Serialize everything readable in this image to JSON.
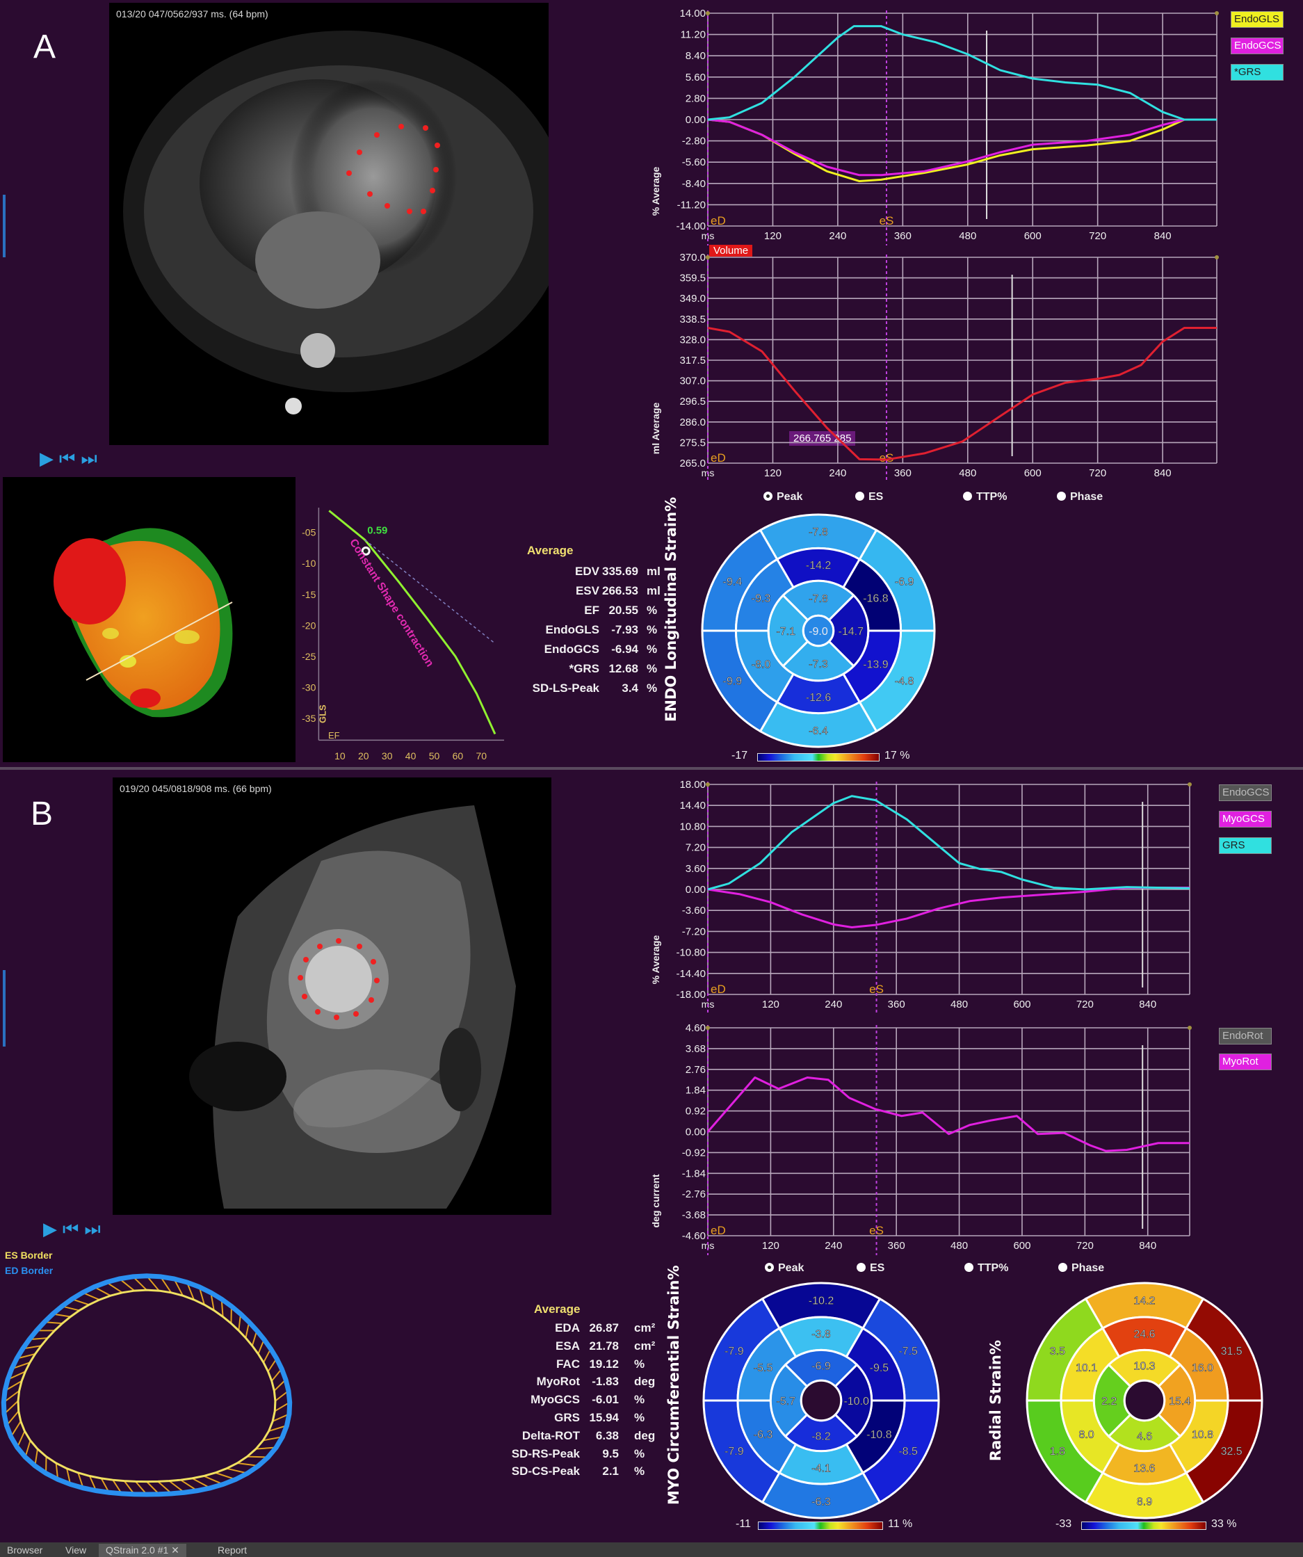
{
  "colors": {
    "background": "#2b0b30",
    "endo_gls": "#f0f020",
    "endo_gcs": "#e020e0",
    "grs": "#30e0e0",
    "volume": "#e02030",
    "myo_gcs": "#e020e0",
    "myo_rot": "#e020e0",
    "play_buttons": "#2aa0e0",
    "es_border": "#f0e060",
    "ed_border": "#2a90f0"
  },
  "panel_a": {
    "letter": "A",
    "frame_info": "013/20  047/0562/937 ms.  (64 bpm)",
    "playback": {
      "play_icon": "play-icon",
      "first_icon": "skip-to-start-icon",
      "last_icon": "skip-to-end-icon"
    },
    "average_title": "Average",
    "average_rows": [
      {
        "label": "EDV",
        "value": "335.69",
        "unit": "ml"
      },
      {
        "label": "ESV",
        "value": "266.53",
        "unit": "ml"
      },
      {
        "label": "EF",
        "value": "20.55",
        "unit": "%"
      },
      {
        "label": "EndoGLS",
        "value": "-7.93",
        "unit": "%"
      },
      {
        "label": "EndoGCS",
        "value": "-6.94",
        "unit": "%"
      },
      {
        "label": "*GRS",
        "value": "12.68",
        "unit": "%"
      },
      {
        "label": "SD-LS-Peak",
        "value": "3.4",
        "unit": "%"
      }
    ],
    "legend_strain": [
      "EndoGLS",
      "EndoGCS",
      "*GRS"
    ],
    "legend_volume": "Volume",
    "radio_options": [
      {
        "label": "Peak",
        "selected": true
      },
      {
        "label": "ES",
        "selected": false
      },
      {
        "label": "TTP%",
        "selected": false
      },
      {
        "label": "Phase",
        "selected": false
      }
    ],
    "bullseye_title": "ENDO Longitudinal Strain%",
    "colorbar": {
      "min": "-17",
      "max": "17 %"
    }
  },
  "panel_b": {
    "letter": "B",
    "frame_info": "019/20  045/0818/908 ms.  (66 bpm)",
    "border_legend": {
      "es": "ES Border",
      "ed": "ED Border"
    },
    "average_title": "Average",
    "average_rows": [
      {
        "label": "EDA",
        "value": "26.87",
        "unit": "cm²"
      },
      {
        "label": "ESA",
        "value": "21.78",
        "unit": "cm²"
      },
      {
        "label": "FAC",
        "value": "19.12",
        "unit": "%"
      },
      {
        "label": "MyoRot",
        "value": "-1.83",
        "unit": "deg"
      },
      {
        "label": "MyoGCS",
        "value": "-6.01",
        "unit": "%"
      },
      {
        "label": "GRS",
        "value": "15.94",
        "unit": "%"
      },
      {
        "label": "Delta-ROT",
        "value": "6.38",
        "unit": "deg"
      },
      {
        "label": "SD-RS-Peak",
        "value": "9.5",
        "unit": "%"
      },
      {
        "label": "SD-CS-Peak",
        "value": "2.1",
        "unit": "%"
      }
    ],
    "legend_strain": [
      "EndoGCS",
      "MyoGCS",
      "GRS"
    ],
    "legend_rotation": [
      "EndoRot",
      "MyoRot"
    ],
    "radio_options": [
      {
        "label": "Peak",
        "selected": true
      },
      {
        "label": "ES",
        "selected": false
      },
      {
        "label": "TTP%",
        "selected": false
      },
      {
        "label": "Phase",
        "selected": false
      }
    ],
    "bullseye_myo_title": "MYO Circumferential Strain%",
    "bullseye_radial_title": "Radial Strain%",
    "colorbar_myo": {
      "min": "-11",
      "max": "11 %"
    },
    "colorbar_radial": {
      "min": "-33",
      "max": "33 %"
    }
  },
  "tabs": [
    {
      "label": "Browser",
      "active": false
    },
    {
      "label": "View",
      "active": false
    },
    {
      "label": "QStrain 2.0 #1  ✕",
      "active": true
    },
    {
      "label": "Report",
      "active": false
    }
  ],
  "chart_data": [
    {
      "type": "line",
      "id": "a_strain",
      "xlabel": "ms",
      "ylabel": "% Average",
      "xlim": [
        0,
        940
      ],
      "ylim": [
        -14,
        14
      ],
      "xticks": [
        "120",
        "240",
        "360",
        "480",
        "600",
        "720",
        "840"
      ],
      "yticks": [
        "14.00",
        "11.20",
        "8.40",
        "5.60",
        "2.80",
        "0.00",
        "-2.80",
        "-5.60",
        "-8.40",
        "-11.20",
        "-14.00"
      ],
      "grid": true,
      "markers": [
        {
          "label": "eD",
          "x": 0
        },
        {
          "label": "eS",
          "x": 330
        }
      ],
      "cursor_x": 515,
      "series": [
        {
          "name": "EndoGLS",
          "color": "#f0f020",
          "points": [
            [
              0,
              0
            ],
            [
              40,
              -0.3
            ],
            [
              100,
              -2
            ],
            [
              160,
              -4.5
            ],
            [
              220,
              -6.8
            ],
            [
              280,
              -8.1
            ],
            [
              320,
              -7.9
            ],
            [
              400,
              -7
            ],
            [
              480,
              -5.9
            ],
            [
              540,
              -4.7
            ],
            [
              600,
              -3.9
            ],
            [
              700,
              -3.4
            ],
            [
              780,
              -2.8
            ],
            [
              840,
              -1.3
            ],
            [
              880,
              0
            ],
            [
              940,
              0
            ]
          ]
        },
        {
          "name": "EndoGCS",
          "color": "#e020e0",
          "points": [
            [
              0,
              0
            ],
            [
              40,
              -0.3
            ],
            [
              100,
              -2
            ],
            [
              160,
              -4.3
            ],
            [
              220,
              -6.2
            ],
            [
              280,
              -7.3
            ],
            [
              320,
              -7.3
            ],
            [
              400,
              -6.8
            ],
            [
              480,
              -5.5
            ],
            [
              540,
              -4.3
            ],
            [
              600,
              -3.3
            ],
            [
              700,
              -2.8
            ],
            [
              780,
              -2
            ],
            [
              840,
              -0.7
            ],
            [
              880,
              0
            ],
            [
              940,
              0
            ]
          ]
        },
        {
          "name": "*GRS",
          "color": "#30e0e0",
          "points": [
            [
              0,
              0
            ],
            [
              40,
              0.3
            ],
            [
              100,
              2.2
            ],
            [
              160,
              5.6
            ],
            [
              240,
              10.8
            ],
            [
              270,
              12.3
            ],
            [
              320,
              12.3
            ],
            [
              360,
              11.2
            ],
            [
              420,
              10.2
            ],
            [
              480,
              8.6
            ],
            [
              540,
              6.5
            ],
            [
              600,
              5.4
            ],
            [
              660,
              4.9
            ],
            [
              720,
              4.6
            ],
            [
              780,
              3.5
            ],
            [
              840,
              1
            ],
            [
              880,
              0
            ],
            [
              940,
              0
            ]
          ]
        }
      ]
    },
    {
      "type": "line",
      "id": "a_volume",
      "xlabel": "ms",
      "ylabel": "ml Average",
      "xlim": [
        0,
        940
      ],
      "ylim": [
        265,
        370
      ],
      "xticks": [
        "120",
        "240",
        "360",
        "480",
        "600",
        "720",
        "840"
      ],
      "yticks": [
        "370.0",
        "359.5",
        "349.0",
        "338.5",
        "328.0",
        "317.5",
        "307.0",
        "296.5",
        "286.0",
        "275.5",
        "265.0"
      ],
      "grid": true,
      "markers": [
        {
          "label": "eD",
          "x": 0
        },
        {
          "label": "eS",
          "x": 330
        }
      ],
      "cursor_x": 562,
      "annotation": "266.765  285",
      "series": [
        {
          "name": "Volume",
          "color": "#e02030",
          "points": [
            [
              0,
              334
            ],
            [
              40,
              332
            ],
            [
              100,
              322
            ],
            [
              160,
              302
            ],
            [
              220,
              283
            ],
            [
              280,
              267
            ],
            [
              330,
              266.8
            ],
            [
              400,
              270
            ],
            [
              470,
              276
            ],
            [
              540,
              289
            ],
            [
              600,
              300
            ],
            [
              660,
              306
            ],
            [
              720,
              308
            ],
            [
              760,
              310
            ],
            [
              800,
              315
            ],
            [
              840,
              327
            ],
            [
              880,
              334
            ],
            [
              940,
              334
            ]
          ]
        }
      ]
    },
    {
      "type": "line",
      "id": "a_gls_ef",
      "xlabel": "EF",
      "ylabel": "GLS",
      "xlim": [
        0,
        80
      ],
      "ylim": [
        -38.5,
        0
      ],
      "xticks": [
        "10",
        "20",
        "30",
        "40",
        "50",
        "60",
        "70"
      ],
      "yticks": [
        "-05",
        "-10",
        "-15",
        "-20",
        "-25",
        "-30",
        "-35"
      ],
      "grid": false,
      "annotation": "Constant Shape contraction",
      "point": {
        "x": 21,
        "y": -8,
        "label": "0.59"
      },
      "series": [
        {
          "color": "#90f030",
          "points": [
            [
              5.4,
              -1.5
            ],
            [
              20.6,
              -6.2
            ],
            [
              35,
              -13
            ],
            [
              46.8,
              -18.8
            ],
            [
              59,
              -25
            ],
            [
              68,
              -31
            ],
            [
              75.8,
              -37.5
            ]
          ]
        },
        {
          "color": "#8080c0",
          "dashed": true,
          "points": [
            [
              20.6,
              -6.2
            ],
            [
              75.8,
              -22.9
            ]
          ]
        }
      ]
    },
    {
      "type": "heatmap",
      "form": "bullseye",
      "id": "a_endo_ls",
      "title": "ENDO Longitudinal Strain%",
      "range": [
        -17,
        17
      ],
      "basal": [
        -7.8,
        -6.9,
        -4.8,
        -6.4,
        -9.9,
        -9.4
      ],
      "mid": [
        -14.2,
        -16.8,
        -13.9,
        -12.6,
        -8.0,
        -9.3
      ],
      "apical": [
        -7.8,
        -14.7,
        -7.3,
        -7.1
      ],
      "apex": -9.0
    },
    {
      "type": "line",
      "id": "b_strain",
      "xlabel": "ms",
      "ylabel": "% Average",
      "xlim": [
        0,
        920
      ],
      "ylim": [
        -18,
        18
      ],
      "xticks": [
        "120",
        "240",
        "360",
        "480",
        "600",
        "720",
        "840"
      ],
      "yticks": [
        "18.00",
        "14.40",
        "10.80",
        "7.20",
        "3.60",
        "0.00",
        "-3.60",
        "-7.20",
        "-10.80",
        "-14.40",
        "-18.00"
      ],
      "grid": true,
      "markers": [
        {
          "label": "eD",
          "x": 0
        },
        {
          "label": "eS",
          "x": 322
        }
      ],
      "cursor_x": 830,
      "series": [
        {
          "name": "MyoGCS",
          "color": "#e020e0",
          "points": [
            [
              0,
              0
            ],
            [
              60,
              -0.8
            ],
            [
              120,
              -2.2
            ],
            [
              180,
              -4.3
            ],
            [
              240,
              -6
            ],
            [
              275,
              -6.5
            ],
            [
              320,
              -6.1
            ],
            [
              380,
              -5
            ],
            [
              440,
              -3.3
            ],
            [
              500,
              -2
            ],
            [
              560,
              -1.4
            ],
            [
              640,
              -0.9
            ],
            [
              720,
              -0.4
            ],
            [
              800,
              0.3
            ],
            [
              920,
              0.3
            ]
          ]
        },
        {
          "name": "GRS",
          "color": "#30e0e0",
          "points": [
            [
              0,
              0
            ],
            [
              40,
              1
            ],
            [
              100,
              4.5
            ],
            [
              160,
              9.8
            ],
            [
              240,
              14.8
            ],
            [
              275,
              16
            ],
            [
              320,
              15.3
            ],
            [
              380,
              12
            ],
            [
              440,
              7.5
            ],
            [
              480,
              4.5
            ],
            [
              520,
              3.5
            ],
            [
              560,
              3
            ],
            [
              600,
              1.7
            ],
            [
              660,
              0.3
            ],
            [
              720,
              0
            ],
            [
              800,
              0.4
            ],
            [
              920,
              0.2
            ]
          ]
        }
      ]
    },
    {
      "type": "line",
      "id": "b_rotation",
      "xlabel": "ms",
      "ylabel": "deg  current",
      "xlim": [
        0,
        920
      ],
      "ylim": [
        -4.6,
        4.6
      ],
      "xticks": [
        "120",
        "240",
        "360",
        "480",
        "600",
        "720",
        "840"
      ],
      "yticks": [
        "4.60",
        "3.68",
        "2.76",
        "1.84",
        "0.92",
        "0.00",
        "-0.92",
        "-1.84",
        "-2.76",
        "-3.68",
        "-4.60"
      ],
      "grid": true,
      "markers": [
        {
          "label": "eD",
          "x": 0
        },
        {
          "label": "eS",
          "x": 322
        }
      ],
      "cursor_x": 830,
      "series": [
        {
          "name": "MyoRot",
          "color": "#e020e0",
          "points": [
            [
              0,
              0
            ],
            [
              90,
              2.4
            ],
            [
              135,
              1.9
            ],
            [
              190,
              2.4
            ],
            [
              230,
              2.3
            ],
            [
              270,
              1.5
            ],
            [
              320,
              1
            ],
            [
              370,
              0.7
            ],
            [
              410,
              0.85
            ],
            [
              460,
              -0.1
            ],
            [
              500,
              0.3
            ],
            [
              540,
              0.5
            ],
            [
              590,
              0.7
            ],
            [
              630,
              -0.1
            ],
            [
              680,
              -0.05
            ],
            [
              730,
              -0.6
            ],
            [
              760,
              -0.85
            ],
            [
              800,
              -0.8
            ],
            [
              860,
              -0.5
            ],
            [
              920,
              -0.5
            ]
          ]
        }
      ]
    },
    {
      "type": "heatmap",
      "form": "bullseye",
      "id": "b_myo_cs",
      "title": "MYO Circumferential Strain%",
      "range": [
        -11,
        11
      ],
      "basal": [
        -10.2,
        -7.5,
        -8.5,
        -6.3,
        -7.9,
        -7.9
      ],
      "mid": [
        -3.8,
        -9.5,
        -10.8,
        -4.1,
        -6.3,
        -5.5
      ],
      "apical": [
        -6.9,
        -10.0,
        -8.2,
        -5.7
      ],
      "apex": null
    },
    {
      "type": "heatmap",
      "form": "bullseye",
      "id": "b_radial",
      "title": "Radial Strain%",
      "range": [
        -33,
        33
      ],
      "basal": [
        14.2,
        31.5,
        32.5,
        8.9,
        1.8,
        3.5
      ],
      "mid": [
        24.6,
        16.0,
        10.8,
        13.6,
        8.0,
        10.1
      ],
      "apical": [
        10.3,
        15.4,
        4.6,
        2.2
      ],
      "apex": null
    }
  ]
}
